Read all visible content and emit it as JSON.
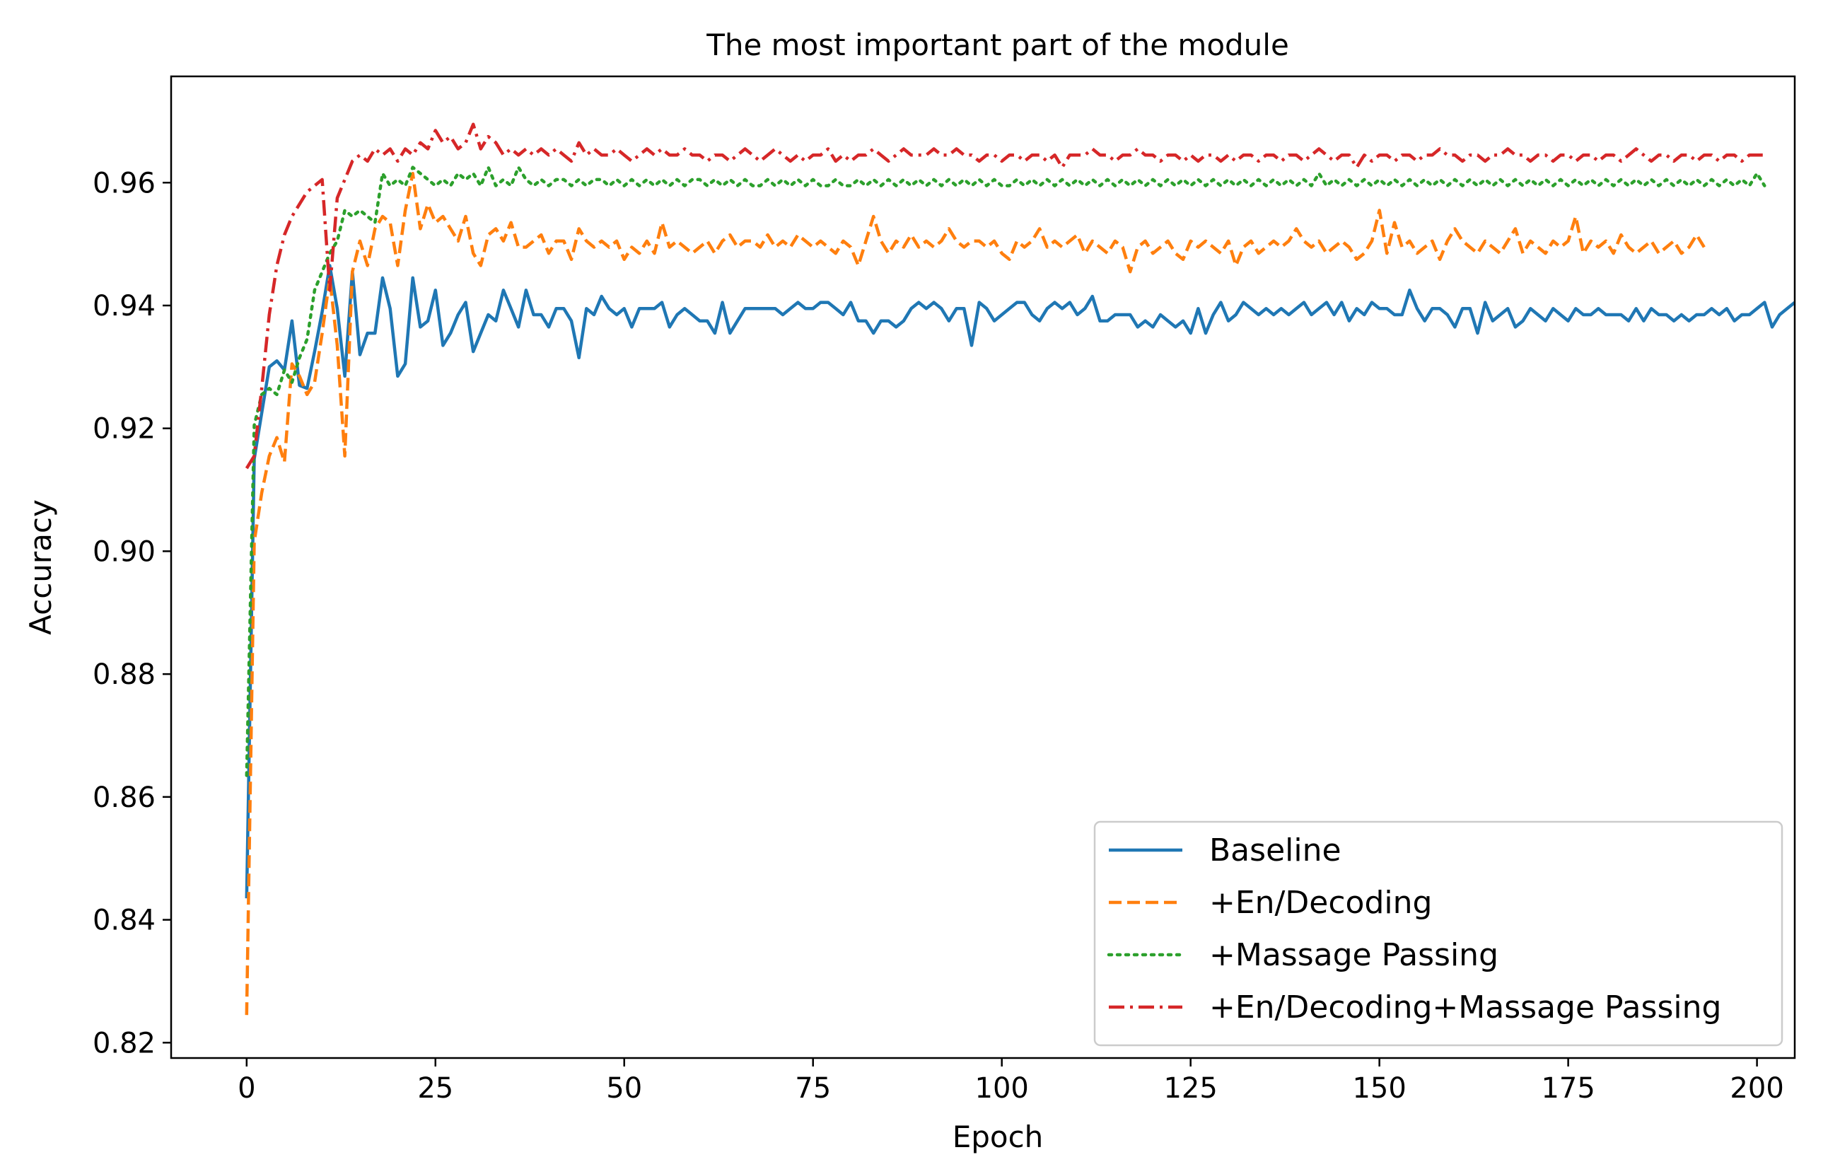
{
  "chart_data": {
    "type": "line",
    "title": "The most important part of the module",
    "xlabel": "Epoch",
    "ylabel": "Accuracy",
    "xlim": [
      -10,
      205
    ],
    "ylim": [
      0.8175,
      0.9773
    ],
    "xticks": [
      0,
      25,
      50,
      75,
      100,
      125,
      150,
      175,
      200
    ],
    "xtick_labels": [
      "0",
      "25",
      "50",
      "75",
      "100",
      "125",
      "150",
      "175",
      "200"
    ],
    "yticks": [
      0.82,
      0.84,
      0.86,
      0.88,
      0.9,
      0.92,
      0.94,
      0.96
    ],
    "ytick_labels": [
      "0.82",
      "0.84",
      "0.86",
      "0.88",
      "0.90",
      "0.92",
      "0.94",
      "0.96"
    ],
    "grid": false,
    "legend_position": "lower-right",
    "series": [
      {
        "name": "Baseline",
        "color": "#1f77b4",
        "style": "solid",
        "values": [
          0.8435,
          0.915,
          0.9225,
          0.93,
          0.931,
          0.9295,
          0.9375,
          0.927,
          0.9265,
          0.9325,
          0.939,
          0.9465,
          0.9395,
          0.9285,
          0.9455,
          0.932,
          0.9355,
          0.9355,
          0.9445,
          0.9395,
          0.9285,
          0.9305,
          0.9445,
          0.9365,
          0.9375,
          0.9425,
          0.9335,
          0.9355,
          0.9385,
          0.9405,
          0.9325,
          0.9355,
          0.9385,
          0.9375,
          0.9425,
          0.9395,
          0.9365,
          0.9425,
          0.9385,
          0.9385,
          0.9365,
          0.9395,
          0.9395,
          0.9375,
          0.9315,
          0.9395,
          0.9385,
          0.9415,
          0.9395,
          0.9385,
          0.9395,
          0.9365,
          0.9395,
          0.9395,
          0.9395,
          0.9405,
          0.9365,
          0.9385,
          0.9395,
          0.9385,
          0.9375,
          0.9375,
          0.9355,
          0.9405,
          0.9355,
          0.9375,
          0.9395,
          0.9395,
          0.9395,
          0.9395,
          0.9395,
          0.9385,
          0.9395,
          0.9405,
          0.9395,
          0.9395,
          0.9405,
          0.9405,
          0.9395,
          0.9385,
          0.9405,
          0.9375,
          0.9375,
          0.9355,
          0.9375,
          0.9375,
          0.9365,
          0.9375,
          0.9395,
          0.9405,
          0.9395,
          0.9405,
          0.9395,
          0.9375,
          0.9395,
          0.9395,
          0.9335,
          0.9405,
          0.9395,
          0.9375,
          0.9385,
          0.9395,
          0.9405,
          0.9405,
          0.9385,
          0.9375,
          0.9395,
          0.9405,
          0.9395,
          0.9405,
          0.9385,
          0.9395,
          0.9415,
          0.9375,
          0.9375,
          0.9385,
          0.9385,
          0.9385,
          0.9365,
          0.9375,
          0.9365,
          0.9385,
          0.9375,
          0.9365,
          0.9375,
          0.9355,
          0.9395,
          0.9355,
          0.9385,
          0.9405,
          0.9375,
          0.9385,
          0.9405,
          0.9395,
          0.9385,
          0.9395,
          0.9385,
          0.9395,
          0.9385,
          0.9395,
          0.9405,
          0.9385,
          0.9395,
          0.9405,
          0.9385,
          0.9405,
          0.9375,
          0.9395,
          0.9385,
          0.9405,
          0.9395,
          0.9395,
          0.9385,
          0.9385,
          0.9425,
          0.9395,
          0.9375,
          0.9395,
          0.9395,
          0.9385,
          0.9365,
          0.9395,
          0.9395,
          0.9355,
          0.9405,
          0.9375,
          0.9385,
          0.9395,
          0.9365,
          0.9375,
          0.9395,
          0.9385,
          0.9375,
          0.9395,
          0.9385,
          0.9375,
          0.9395,
          0.9385,
          0.9385,
          0.9395,
          0.9385,
          0.9385,
          0.9385,
          0.9375,
          0.9395,
          0.9375,
          0.9395,
          0.9385,
          0.9385,
          0.9375,
          0.9385,
          0.9375,
          0.9385,
          0.9385,
          0.9395,
          0.9385,
          0.9395,
          0.9375,
          0.9385,
          0.9385,
          0.9395,
          0.9405,
          0.9365,
          0.9385,
          0.9395,
          0.9405
        ]
      },
      {
        "name": "+En/Decoding",
        "color": "#ff7f0e",
        "style": "dashed",
        "values": [
          0.8245,
          0.9015,
          0.9095,
          0.9155,
          0.9185,
          0.9145,
          0.9305,
          0.9285,
          0.9255,
          0.9275,
          0.9355,
          0.9445,
          0.9335,
          0.9155,
          0.9455,
          0.9505,
          0.9465,
          0.9525,
          0.9545,
          0.9535,
          0.9465,
          0.9555,
          0.9615,
          0.9525,
          0.9565,
          0.9535,
          0.9545,
          0.9525,
          0.9505,
          0.9545,
          0.9485,
          0.9465,
          0.9515,
          0.9525,
          0.9505,
          0.9535,
          0.9495,
          0.9495,
          0.9505,
          0.9515,
          0.9485,
          0.9505,
          0.9505,
          0.9475,
          0.9525,
          0.9505,
          0.9495,
          0.9505,
          0.9495,
          0.9505,
          0.9475,
          0.9495,
          0.9485,
          0.9505,
          0.9485,
          0.9535,
          0.9495,
          0.9505,
          0.9495,
          0.9485,
          0.9495,
          0.9505,
          0.9485,
          0.9505,
          0.9515,
          0.9495,
          0.9505,
          0.9505,
          0.9495,
          0.9515,
          0.9495,
          0.9505,
          0.9495,
          0.9515,
          0.9505,
          0.9495,
          0.9505,
          0.9495,
          0.9485,
          0.9505,
          0.9495,
          0.9465,
          0.9505,
          0.9545,
          0.9505,
          0.9485,
          0.9505,
          0.9495,
          0.9515,
          0.9495,
          0.9505,
          0.9495,
          0.9505,
          0.9525,
          0.9505,
          0.9495,
          0.9505,
          0.9505,
          0.9495,
          0.9505,
          0.9485,
          0.9475,
          0.9505,
          0.9495,
          0.9505,
          0.9525,
          0.9495,
          0.9505,
          0.9495,
          0.9505,
          0.9515,
          0.9485,
          0.9505,
          0.9495,
          0.9485,
          0.9505,
          0.9495,
          0.9455,
          0.9495,
          0.9505,
          0.9485,
          0.9495,
          0.9505,
          0.9485,
          0.9475,
          0.9505,
          0.9495,
          0.9505,
          0.9495,
          0.9485,
          0.9505,
          0.9465,
          0.9495,
          0.9505,
          0.9485,
          0.9495,
          0.9505,
          0.9495,
          0.9505,
          0.9525,
          0.9505,
          0.9495,
          0.9505,
          0.9485,
          0.9495,
          0.9505,
          0.9495,
          0.9475,
          0.9485,
          0.9505,
          0.9555,
          0.9485,
          0.9535,
          0.9495,
          0.9505,
          0.9485,
          0.9495,
          0.9505,
          0.9475,
          0.9505,
          0.9525,
          0.9505,
          0.9495,
          0.9485,
          0.9505,
          0.9495,
          0.9485,
          0.9505,
          0.9525,
          0.9485,
          0.9505,
          0.9495,
          0.9485,
          0.9505,
          0.9495,
          0.9505,
          0.9545,
          0.9485,
          0.9505,
          0.9495,
          0.9505,
          0.9485,
          0.9515,
          0.9495,
          0.9485,
          0.9495,
          0.9505,
          0.9485,
          0.9495,
          0.9505,
          0.9485,
          0.9495,
          0.9515,
          0.9495
        ]
      },
      {
        "name": "+Massage Passing",
        "color": "#2ca02c",
        "style": "dotted",
        "values": [
          0.8635,
          0.9205,
          0.9255,
          0.9265,
          0.9255,
          0.9295,
          0.9275,
          0.9315,
          0.9345,
          0.9425,
          0.9455,
          0.9485,
          0.9505,
          0.9555,
          0.9545,
          0.9555,
          0.9545,
          0.9535,
          0.9615,
          0.9595,
          0.9605,
          0.9595,
          0.9625,
          0.9615,
          0.9605,
          0.9595,
          0.9605,
          0.9595,
          0.9615,
          0.9605,
          0.9615,
          0.9595,
          0.9625,
          0.9595,
          0.9605,
          0.9595,
          0.9625,
          0.9605,
          0.9595,
          0.9605,
          0.9595,
          0.9605,
          0.9605,
          0.9595,
          0.9605,
          0.9595,
          0.9605,
          0.9605,
          0.9595,
          0.9605,
          0.9595,
          0.9605,
          0.9595,
          0.9605,
          0.9595,
          0.9605,
          0.9595,
          0.9605,
          0.9595,
          0.9605,
          0.9605,
          0.9595,
          0.9605,
          0.9595,
          0.9605,
          0.9595,
          0.9605,
          0.9595,
          0.9595,
          0.9605,
          0.9595,
          0.9605,
          0.9595,
          0.9605,
          0.9595,
          0.9605,
          0.9595,
          0.9595,
          0.9605,
          0.9595,
          0.9595,
          0.9605,
          0.9595,
          0.9605,
          0.9595,
          0.9605,
          0.9595,
          0.9605,
          0.9595,
          0.9605,
          0.9595,
          0.9605,
          0.9595,
          0.9605,
          0.9595,
          0.9605,
          0.9595,
          0.9605,
          0.9595,
          0.9605,
          0.9595,
          0.9595,
          0.9605,
          0.9595,
          0.9605,
          0.9595,
          0.9605,
          0.9595,
          0.9605,
          0.9595,
          0.9605,
          0.9595,
          0.9605,
          0.9595,
          0.9605,
          0.9595,
          0.9605,
          0.9595,
          0.9605,
          0.9595,
          0.9605,
          0.9595,
          0.9605,
          0.9595,
          0.9605,
          0.9595,
          0.9605,
          0.9595,
          0.9605,
          0.9595,
          0.9605,
          0.9595,
          0.9605,
          0.9595,
          0.9605,
          0.9595,
          0.9605,
          0.9595,
          0.9605,
          0.9595,
          0.9605,
          0.9595,
          0.9615,
          0.9595,
          0.9605,
          0.9595,
          0.9605,
          0.9595,
          0.9605,
          0.9595,
          0.9605,
          0.9595,
          0.9605,
          0.9595,
          0.9605,
          0.9595,
          0.9605,
          0.9595,
          0.9605,
          0.9595,
          0.9605,
          0.9595,
          0.9605,
          0.9595,
          0.9605,
          0.9595,
          0.9605,
          0.9595,
          0.9605,
          0.9595,
          0.9605,
          0.9595,
          0.9605,
          0.9595,
          0.9605,
          0.9595,
          0.9605,
          0.9595,
          0.9605,
          0.9595,
          0.9605,
          0.9595,
          0.9605,
          0.9595,
          0.9605,
          0.9595,
          0.9605,
          0.9595,
          0.9605,
          0.9595,
          0.9605,
          0.9595,
          0.9605,
          0.9595,
          0.9605,
          0.9595,
          0.9605,
          0.9595,
          0.9605,
          0.9595,
          0.9615,
          0.9595
        ]
      },
      {
        "name": "+En/Decoding+Massage Passing",
        "color": "#d62728",
        "style": "dashdot",
        "values": [
          0.9135,
          0.9155,
          0.9265,
          0.9385,
          0.9465,
          0.9515,
          0.9545,
          0.9565,
          0.9585,
          0.9595,
          0.9605,
          0.9425,
          0.9575,
          0.9605,
          0.9635,
          0.9645,
          0.9635,
          0.9655,
          0.9645,
          0.9655,
          0.9635,
          0.9655,
          0.9645,
          0.9665,
          0.9655,
          0.9685,
          0.9665,
          0.9675,
          0.9655,
          0.9665,
          0.9695,
          0.9655,
          0.9675,
          0.9665,
          0.9645,
          0.9655,
          0.9645,
          0.9655,
          0.9645,
          0.9655,
          0.9645,
          0.9655,
          0.9645,
          0.9635,
          0.9665,
          0.9645,
          0.9655,
          0.9645,
          0.9645,
          0.9655,
          0.9645,
          0.9635,
          0.9645,
          0.9655,
          0.9645,
          0.9655,
          0.9645,
          0.9645,
          0.9655,
          0.9645,
          0.9645,
          0.9635,
          0.9645,
          0.9645,
          0.9635,
          0.9645,
          0.9655,
          0.9645,
          0.9635,
          0.9645,
          0.9655,
          0.9645,
          0.9635,
          0.9645,
          0.9635,
          0.9645,
          0.9645,
          0.9655,
          0.9635,
          0.9645,
          0.9635,
          0.9645,
          0.9645,
          0.9655,
          0.9645,
          0.9635,
          0.9645,
          0.9655,
          0.9645,
          0.9645,
          0.9645,
          0.9655,
          0.9645,
          0.9645,
          0.9655,
          0.9645,
          0.9645,
          0.9635,
          0.9645,
          0.9645,
          0.9635,
          0.9645,
          0.9645,
          0.9635,
          0.9645,
          0.9645,
          0.9635,
          0.9645,
          0.9625,
          0.9645,
          0.9645,
          0.9645,
          0.9655,
          0.9645,
          0.9645,
          0.9635,
          0.9645,
          0.9645,
          0.9655,
          0.9645,
          0.9645,
          0.9635,
          0.9645,
          0.9645,
          0.9635,
          0.9645,
          0.9635,
          0.9645,
          0.9645,
          0.9635,
          0.9645,
          0.9635,
          0.9645,
          0.9645,
          0.9635,
          0.9645,
          0.9645,
          0.9635,
          0.9645,
          0.9645,
          0.9635,
          0.9645,
          0.9655,
          0.9645,
          0.9635,
          0.9645,
          0.9645,
          0.9625,
          0.9645,
          0.9635,
          0.9645,
          0.9645,
          0.9635,
          0.9645,
          0.9645,
          0.9635,
          0.9645,
          0.9645,
          0.9655,
          0.9645,
          0.9645,
          0.9635,
          0.9645,
          0.9645,
          0.9635,
          0.9645,
          0.9645,
          0.9655,
          0.9645,
          0.9645,
          0.9635,
          0.9645,
          0.9645,
          0.9635,
          0.9645,
          0.9645,
          0.9635,
          0.9645,
          0.9645,
          0.9635,
          0.9645,
          0.9645,
          0.9635,
          0.9645,
          0.9655,
          0.9645,
          0.9635,
          0.9645,
          0.9645,
          0.9635,
          0.9645,
          0.9645,
          0.9635,
          0.9645,
          0.9645,
          0.9635,
          0.9645,
          0.9645,
          0.9635,
          0.9645,
          0.9645,
          0.9645
        ]
      }
    ]
  }
}
